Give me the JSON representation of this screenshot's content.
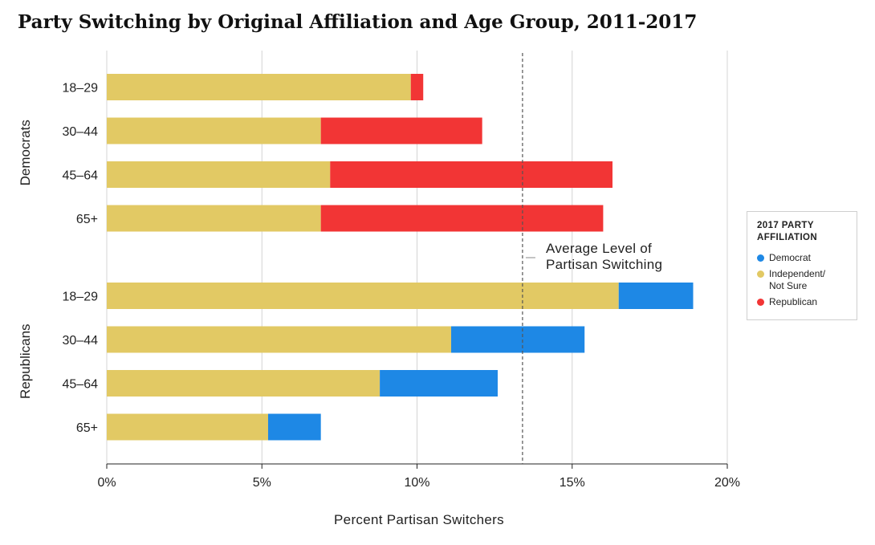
{
  "chart_data": {
    "type": "bar",
    "orientation": "horizontal",
    "stacked": true,
    "title": "Party Switching by Original Affiliation and Age Group, 2011-2017",
    "xlabel": "Percent Partisan Switchers",
    "xlim": [
      0,
      20
    ],
    "xticks": [
      "0%",
      "5%",
      "10%",
      "15%",
      "20%"
    ],
    "grid": "vertical",
    "groups": [
      {
        "name": "Democrats",
        "categories": [
          "18-29",
          "30-44",
          "45-64",
          "65+"
        ],
        "series": [
          {
            "name": "Independent/ Not Sure",
            "color": "#E2C964",
            "values": [
              9.8,
              6.9,
              7.2,
              6.9
            ]
          },
          {
            "name": "Republican",
            "color": "#F23535",
            "values": [
              0.4,
              5.2,
              9.1,
              9.1
            ]
          }
        ]
      },
      {
        "name": "Republicans",
        "categories": [
          "18-29",
          "30-44",
          "45-64",
          "65+"
        ],
        "series": [
          {
            "name": "Independent/ Not Sure",
            "color": "#E2C964",
            "values": [
              16.5,
              11.1,
              8.8,
              5.2
            ]
          },
          {
            "name": "Democrat",
            "color": "#1E88E5",
            "values": [
              2.4,
              4.3,
              3.8,
              1.7
            ]
          }
        ]
      }
    ],
    "reference_line": {
      "value": 13.4,
      "style": "dashed",
      "label": [
        "Average Level of",
        "Partisan Switching"
      ]
    },
    "legend": {
      "title": [
        "2017 PARTY",
        "AFFILIATION"
      ],
      "placement": "right",
      "items": [
        {
          "label": "Democrat",
          "color": "#1E88E5"
        },
        {
          "label": "Independent/\nNot Sure",
          "color": "#E2C964"
        },
        {
          "label": "Republican",
          "color": "#F23535"
        }
      ]
    }
  }
}
